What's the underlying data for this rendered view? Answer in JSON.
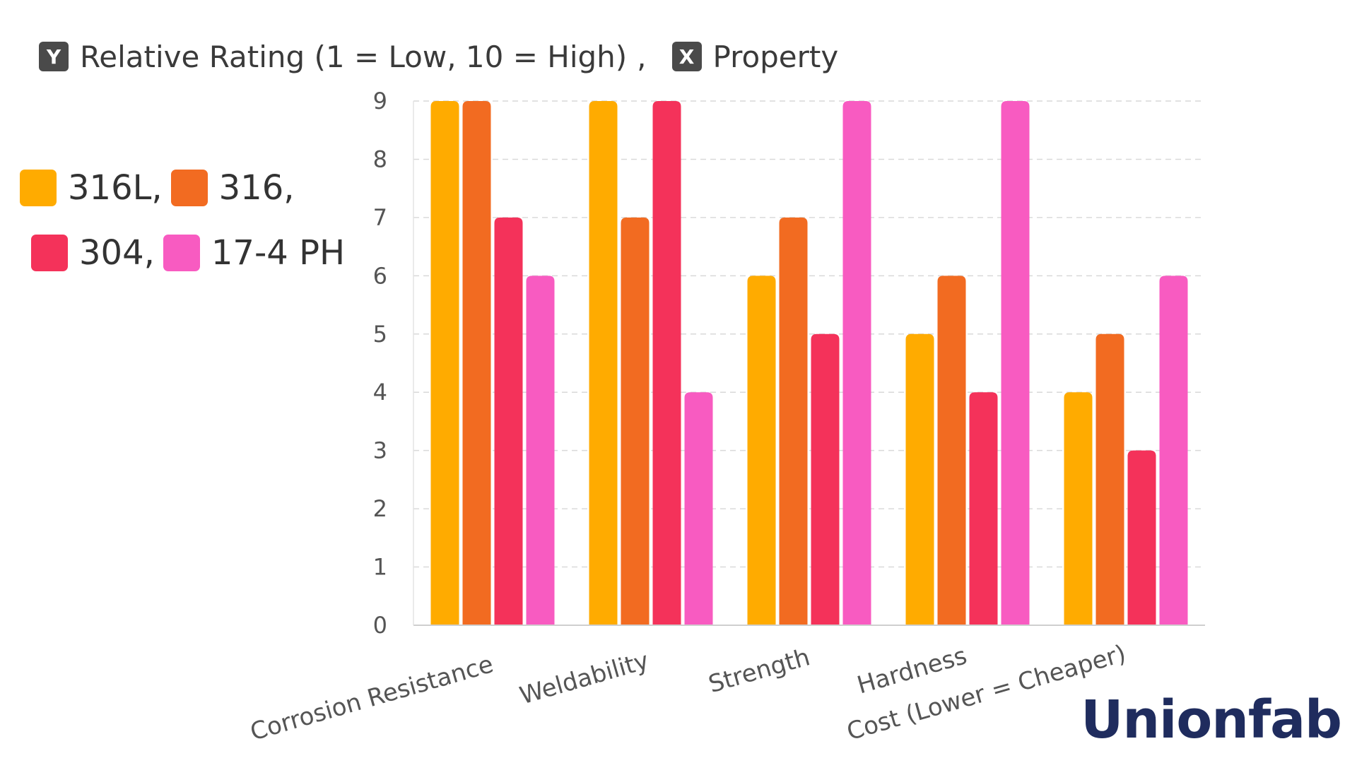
{
  "header": {
    "y_badge": "Y",
    "y_label": "Relative Rating (1 = Low, 10 = High)",
    "separator": ",",
    "x_badge": "X",
    "x_label": "Property"
  },
  "legend": {
    "rows": [
      [
        {
          "label": "316L,",
          "color": "#FFAB00"
        },
        {
          "label": "316,",
          "color": "#F26B21"
        }
      ],
      [
        {
          "label": "304,",
          "color": "#F4325A"
        },
        {
          "label": "17-4 PH",
          "color": "#F85BC1"
        }
      ]
    ]
  },
  "brand": {
    "name": "Unionfab"
  },
  "chart_data": {
    "type": "bar",
    "title": "",
    "xlabel": "Property",
    "ylabel": "Relative Rating (1 = Low, 10 = High)",
    "categories": [
      "Corrosion Resistance",
      "Weldability",
      "Strength",
      "Hardness",
      "Cost (Lower = Cheaper)"
    ],
    "series": [
      {
        "name": "316L",
        "color": "#FFAB00",
        "values": [
          9,
          9,
          6,
          5,
          4
        ]
      },
      {
        "name": "316",
        "color": "#F26B21",
        "values": [
          9,
          7,
          7,
          6,
          5
        ]
      },
      {
        "name": "304",
        "color": "#F4325A",
        "values": [
          7,
          9,
          5,
          4,
          3
        ]
      },
      {
        "name": "17-4 PH",
        "color": "#F85BC1",
        "values": [
          6,
          4,
          9,
          9,
          6
        ]
      }
    ],
    "yticks": [
      "0",
      "1",
      "2",
      "3",
      "4",
      "5",
      "6",
      "7",
      "8",
      "9"
    ],
    "ylim": [
      0,
      9
    ],
    "grid": true,
    "legend_position": "left"
  }
}
